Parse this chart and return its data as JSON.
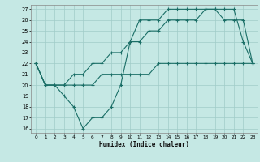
{
  "xlabel": "Humidex (Indice chaleur)",
  "bg_color": "#c5e8e4",
  "grid_color": "#a0ccc8",
  "line_color": "#1a6e66",
  "xlim_min": -0.5,
  "xlim_max": 23.5,
  "ylim_min": 15.6,
  "ylim_max": 27.4,
  "xticks": [
    0,
    1,
    2,
    3,
    4,
    5,
    6,
    7,
    8,
    9,
    10,
    11,
    12,
    13,
    14,
    15,
    16,
    17,
    18,
    19,
    20,
    21,
    22,
    23
  ],
  "yticks": [
    16,
    17,
    18,
    19,
    20,
    21,
    22,
    23,
    24,
    25,
    26,
    27
  ],
  "line1_x": [
    0,
    1,
    2,
    3,
    4,
    5,
    6,
    7,
    8,
    9,
    10,
    11,
    12,
    13,
    14,
    15,
    16,
    17,
    18,
    19,
    20,
    21,
    22,
    23
  ],
  "line1_y": [
    22,
    20,
    20,
    19,
    18,
    16,
    17,
    17,
    18,
    20,
    24,
    26,
    26,
    26,
    27,
    27,
    27,
    27,
    27,
    27,
    27,
    27,
    24,
    22
  ],
  "line2_x": [
    0,
    1,
    3,
    4,
    5,
    6,
    7,
    8,
    9,
    10,
    11,
    12,
    13,
    14,
    15,
    16,
    17,
    18,
    19,
    20,
    21,
    22,
    23
  ],
  "line2_y": [
    22,
    20,
    20,
    20,
    20,
    20,
    21,
    21,
    21,
    21,
    21,
    21,
    22,
    22,
    22,
    22,
    22,
    22,
    22,
    22,
    22,
    22,
    22
  ],
  "line3_x": [
    0,
    1,
    2,
    3,
    4,
    5,
    6,
    7,
    8,
    9,
    10,
    11,
    12,
    13,
    14,
    15,
    16,
    17,
    18,
    19,
    20,
    21,
    22,
    23
  ],
  "line3_y": [
    22,
    20,
    20,
    20,
    21,
    21,
    22,
    22,
    23,
    23,
    24,
    24,
    25,
    25,
    26,
    26,
    26,
    26,
    27,
    27,
    26,
    26,
    26,
    22
  ]
}
